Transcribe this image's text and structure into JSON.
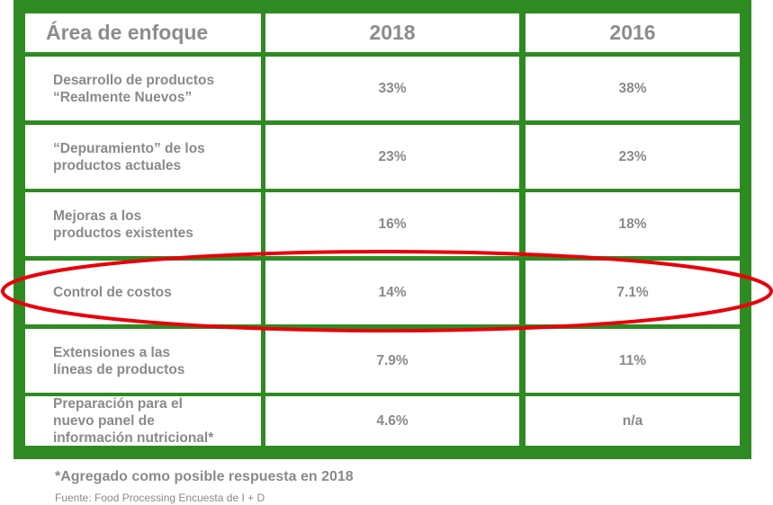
{
  "chart_data": {
    "type": "table",
    "columns": [
      "Área de enfoque",
      "2018",
      "2016"
    ],
    "rows": [
      {
        "area": [
          "Desarrollo de productos",
          "“Realmente Nuevos”"
        ],
        "y2018": "33%",
        "y2016": "38%"
      },
      {
        "area": [
          "“Depuramiento” de los",
          "productos actuales"
        ],
        "y2018": "23%",
        "y2016": "23%"
      },
      {
        "area": [
          "Mejoras a los",
          "productos existentes"
        ],
        "y2018": "16%",
        "y2016": "18%"
      },
      {
        "area": [
          "Control de costos"
        ],
        "y2018": "14%",
        "y2016": "7.1%"
      },
      {
        "area": [
          "Extensiones a las",
          "líneas de productos"
        ],
        "y2018": "7.9%",
        "y2016": "11%"
      },
      {
        "area": [
          "Preparación para el",
          "nuevo panel de",
          "información nutricional*"
        ],
        "y2018": "4.6%",
        "y2016": "n/a"
      }
    ],
    "highlighted_row": "Control de costos"
  },
  "footnote": "*Agregado como posible respuesta en 2018",
  "source": "Fuente: Food Processing Encuesta de I + D",
  "colors": {
    "frame": "#2e8b22",
    "text": "#8a8a8a",
    "highlight": "#e8000b"
  }
}
